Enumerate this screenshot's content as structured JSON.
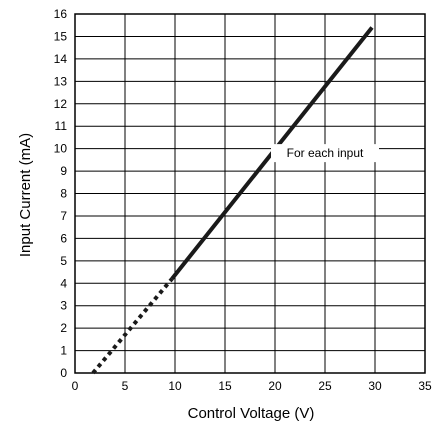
{
  "chart_data": {
    "type": "line",
    "title": "",
    "xlabel": "Control Voltage (V)",
    "ylabel": "Input Current (mA)",
    "xlim": [
      0,
      35
    ],
    "ylim": [
      0,
      16
    ],
    "xticks": [
      0,
      5,
      10,
      15,
      20,
      25,
      30,
      35
    ],
    "yticks": [
      0,
      1,
      2,
      3,
      4,
      5,
      6,
      7,
      8,
      9,
      10,
      11,
      12,
      13,
      14,
      15,
      16
    ],
    "grid": true,
    "series": [
      {
        "style": "dotted",
        "x": [
          1.8,
          9.7
        ],
        "y": [
          0,
          4.2
        ]
      },
      {
        "style": "solid",
        "x": [
          9.7,
          29.7
        ],
        "y": [
          4.2,
          15.4
        ]
      }
    ],
    "annotations": [
      {
        "text": "For each input",
        "x": 25,
        "y": 9.8
      }
    ]
  }
}
